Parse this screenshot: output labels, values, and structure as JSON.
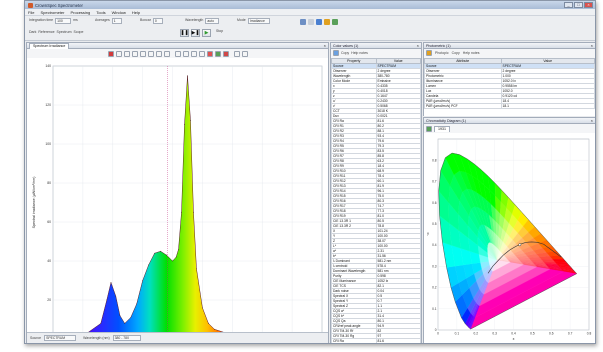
{
  "window": {
    "title": "CrownSpec Spectrometer",
    "controls": [
      "_",
      "□",
      "×"
    ]
  },
  "menu": [
    "File",
    "Spectrometer",
    "Processing",
    "Tools",
    "Window",
    "Help"
  ],
  "toolbar": {
    "group1_label": "Integration time",
    "group1_value": "100",
    "group1_unit": "ms",
    "group2_label": "Averages",
    "group2_value": "1",
    "group3_label": "Boxcar",
    "group3_value": "0",
    "group4_label": "Wavelength",
    "group4_value": "auto",
    "group5_label": "Mode",
    "group5_value": "Irradiance",
    "row2_a": "Dark",
    "row2_b": "Reference",
    "row2_c": "Spectrum",
    "row2_d": "Scope",
    "row2_e": "Stop"
  },
  "spectrum_panel": {
    "tab": "Spectrum Irradiance",
    "y_label": "Spectral irradiance (µW/cm²/nm)",
    "x_label": "Wavelength (nm)",
    "cursor_readout": "L:541.3 nm",
    "source_label": "Source",
    "source_value": "SPECTRUM",
    "range_label": "Wavelength (nm)",
    "range_value": "380 - 780"
  },
  "chart_data": {
    "type": "area",
    "x_label": "Wavelength (nm)",
    "y_label": "Spectral irradiance (µW/cm²/nm)",
    "xlim": [
      350,
      800
    ],
    "ylim": [
      0,
      140
    ],
    "x_ticks": [
      350,
      400,
      450,
      500,
      550,
      600,
      650,
      700,
      750,
      800
    ],
    "y_ticks": [
      0,
      20,
      40,
      60,
      80,
      100,
      120,
      140
    ],
    "grid": true,
    "x": [
      370,
      400,
      430,
      440,
      447,
      455,
      462,
      470,
      480,
      490,
      500,
      510,
      520,
      530,
      540,
      550,
      556,
      560,
      565,
      570,
      575,
      580,
      585,
      590,
      600,
      610,
      620,
      640,
      660,
      680,
      700,
      750,
      780
    ],
    "y": [
      1,
      1.5,
      8,
      20,
      29,
      22,
      12,
      8,
      11,
      18,
      30,
      38,
      44,
      45,
      43,
      40,
      42,
      46,
      65,
      110,
      135,
      112,
      65,
      36,
      16,
      8,
      5,
      3,
      2,
      1.5,
      1,
      0.5,
      0.3
    ]
  },
  "color_values_panel": {
    "title": "Color values (1)",
    "tools": [
      "Copy",
      "Help notes"
    ],
    "headers": [
      "Property",
      "Value"
    ],
    "rows": [
      [
        "Source",
        "SPECTRUM"
      ],
      [
        "Observer",
        "2 degree"
      ],
      [
        "Wavelength",
        "380-780"
      ],
      [
        "Color Mode",
        "Emissive"
      ],
      [
        "x",
        "0.4335"
      ],
      [
        "y",
        "0.4018"
      ],
      [
        "z",
        "0.1647"
      ],
      [
        "u'",
        "0.2430"
      ],
      [
        "v'",
        "0.5068"
      ],
      [
        "CCT",
        "3018 K"
      ],
      [
        "Duv",
        "0.0021"
      ],
      [
        "CRI Ra",
        "81.6"
      ],
      [
        "CRI R1",
        "80.2"
      ],
      [
        "CRI R2",
        "88.1"
      ],
      [
        "CRI R3",
        "93.4"
      ],
      [
        "CRI R4",
        "79.6"
      ],
      [
        "CRI R5",
        "79.3"
      ],
      [
        "CRI R6",
        "83.5"
      ],
      [
        "CRI R7",
        "85.8"
      ],
      [
        "CRI R8",
        "63.2"
      ],
      [
        "CRI R9",
        "18.4"
      ],
      [
        "CRI R10",
        "68.9"
      ],
      [
        "CRI R11",
        "78.4"
      ],
      [
        "CRI R12",
        "60.1"
      ],
      [
        "CRI R13",
        "81.9"
      ],
      [
        "CRI R14",
        "96.1"
      ],
      [
        "CRI R15",
        "75.0"
      ],
      [
        "CRI R16",
        "80.3"
      ],
      [
        "CRI R17",
        "74.7"
      ],
      [
        "CRI R18",
        "77.3"
      ],
      [
        "CRI R19",
        "81.0"
      ],
      [
        "CIE 13.3R 1",
        "80.5"
      ],
      [
        "CIE 13.3R 2",
        "78.8"
      ],
      [
        "X",
        "101.24"
      ],
      [
        "Y",
        "100.00"
      ],
      [
        "Z",
        "38.07"
      ],
      [
        "L*",
        "100.00"
      ],
      [
        "a*",
        "2.31"
      ],
      [
        "b*",
        "31.56"
      ],
      [
        "λ Dominant",
        "581.2 nm"
      ],
      [
        "λ centroid",
        "578.4"
      ],
      [
        "Dominant Wavelength",
        "581 nm"
      ],
      [
        "Purity",
        "0.598"
      ],
      [
        "CIE illuminance",
        "1052 lx"
      ],
      [
        "CIE TCS",
        "82.1"
      ],
      [
        "Dark noise",
        "0.04"
      ],
      [
        "Spectral X",
        "0.5"
      ],
      [
        "Spectral Y",
        "0.7"
      ],
      [
        "Spectral Z",
        "1.1"
      ],
      [
        "CQS a*",
        "2.1"
      ],
      [
        "CQS b*",
        "31.4"
      ],
      [
        "CQS Qa",
        "80.1"
      ],
      [
        "CRI/ref peak angle",
        "94.9"
      ],
      [
        "CRI TM-30 Rf",
        "82"
      ],
      [
        "CRI TM-30 Rg",
        "97"
      ],
      [
        "CRI Ra",
        "81.6"
      ]
    ]
  },
  "photometric_panel": {
    "title": "Photometric (1)",
    "tools": [
      "Photopic",
      "Copy",
      "Help notes"
    ],
    "headers": [
      "Attribute",
      "Value"
    ],
    "rows": [
      [
        "Source",
        "SPECTRUM"
      ],
      [
        "Observer",
        "2 degree"
      ],
      [
        "Photometric",
        "1.000"
      ],
      [
        "Illuminance",
        "1052.0 lx"
      ],
      [
        "Lumen",
        "0.9558 lm"
      ],
      [
        "Lux",
        "1052.0"
      ],
      [
        "Candela",
        "0.9120 cd"
      ],
      [
        "PAR (µmol/m²/s)",
        "18.4"
      ],
      [
        "PAR (µmol/m²/s) PCF",
        "18.1"
      ]
    ]
  },
  "chromaticity_panel": {
    "title": "Chromaticity Diagram (1)",
    "tab": "1931",
    "x_ticks": [
      "0",
      "0.1",
      "0.2",
      "0.3",
      "0.4",
      "0.5",
      "0.6",
      "0.7",
      "0.8"
    ],
    "y_ticks": [
      "0",
      "0.1",
      "0.2",
      "0.3",
      "0.4",
      "0.5",
      "0.6",
      "0.7",
      "0.8"
    ],
    "x_axis_label": "x",
    "y_axis_label": "y"
  },
  "colors": {
    "accent": "#3b6cb6",
    "window_border": "#8a96a8",
    "panel_bg": "#f4f5f7"
  }
}
